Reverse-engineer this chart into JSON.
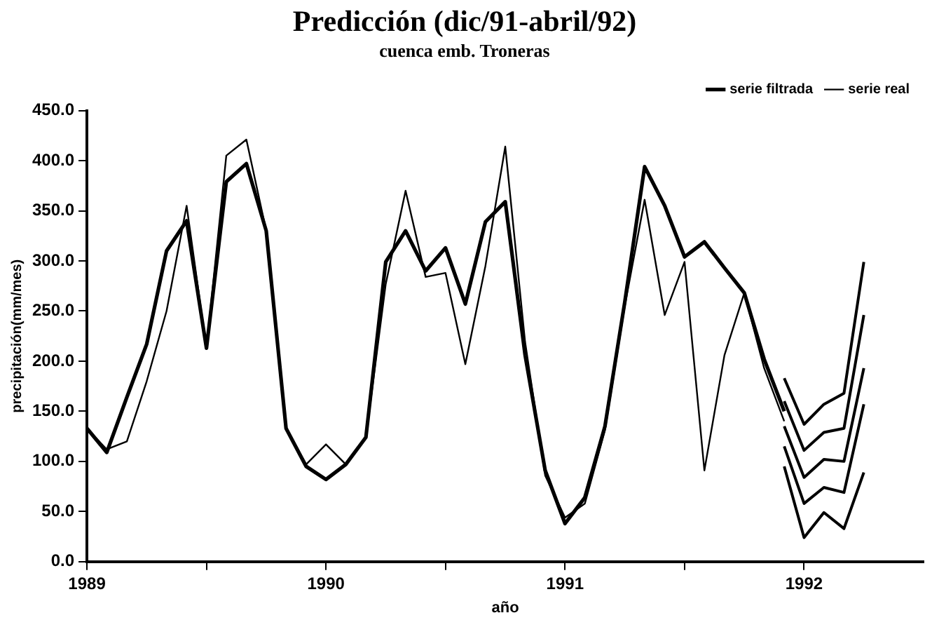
{
  "chart_data": {
    "type": "line",
    "title": "Predicción (dic/91-abril/92)",
    "subtitle": "cuenca emb. Troneras",
    "xlabel": "año",
    "ylabel": "precipitación(mm/mes)",
    "x": [
      1989,
      1989.083,
      1989.167,
      1989.25,
      1989.333,
      1989.417,
      1989.5,
      1989.583,
      1989.667,
      1989.75,
      1989.833,
      1989.917,
      1990,
      1990.083,
      1990.167,
      1990.25,
      1990.333,
      1990.417,
      1990.5,
      1990.583,
      1990.667,
      1990.75,
      1990.833,
      1990.917,
      1991,
      1991.083,
      1991.167,
      1991.25,
      1991.333,
      1991.417,
      1991.5,
      1991.583,
      1991.667,
      1991.75,
      1991.833,
      1991.917
    ],
    "series": [
      {
        "name": "serie filtrada",
        "color": "#000000",
        "values": [
          133,
          109,
          164,
          217,
          310,
          340,
          213,
          379,
          397,
          330,
          133,
          95,
          82,
          97,
          124,
          299,
          330,
          290,
          313,
          257,
          339,
          359,
          206,
          91,
          38,
          64,
          135,
          259,
          394,
          355,
          304,
          319,
          293,
          268,
          202,
          150
        ]
      },
      {
        "name": "serie real",
        "color": "#000000",
        "values": [
          133,
          112,
          120,
          180,
          250,
          355,
          213,
          405,
          421,
          330,
          133,
          97,
          117,
          97,
          124,
          277,
          370,
          284,
          288,
          197,
          295,
          414,
          219,
          86,
          44,
          58,
          131,
          255,
          361,
          246,
          299,
          91,
          206,
          268,
          193,
          140
        ]
      },
      {
        "color": "#000000",
        "x": [
          1991.917,
          1992,
          1992.083,
          1992.167,
          1992.25
        ],
        "values": [
          183,
          137,
          157,
          168,
          299
        ]
      },
      {
        "color": "#000000",
        "x": [
          1991.917,
          1992,
          1992.083,
          1992.167,
          1992.25
        ],
        "values": [
          160,
          111,
          129,
          133,
          246
        ]
      },
      {
        "color": "#000000",
        "x": [
          1991.917,
          1992,
          1992.083,
          1992.167,
          1992.25
        ],
        "values": [
          135,
          84,
          102,
          100,
          193
        ]
      },
      {
        "color": "#000000",
        "x": [
          1991.917,
          1992,
          1992.083,
          1992.167,
          1992.25
        ],
        "values": [
          115,
          58,
          74,
          69,
          157
        ]
      },
      {
        "color": "#000000",
        "x": [
          1991.917,
          1992,
          1992.083,
          1992.167,
          1992.25
        ],
        "values": [
          95,
          24,
          49,
          33,
          89
        ]
      }
    ],
    "xlim": [
      1989,
      1992.5
    ],
    "xticks": [
      1989,
      {
        "value": 1989.5,
        "label": null
      },
      1990,
      {
        "value": 1990.5,
        "label": null
      },
      1991,
      {
        "value": 1991.5,
        "label": null
      },
      1992
    ],
    "ylim": [
      0,
      450
    ],
    "yticks": [
      {
        "value": 0,
        "label": "0.0"
      },
      {
        "value": 50,
        "label": "50.0"
      },
      {
        "value": 100,
        "label": "100.0"
      },
      {
        "value": 150,
        "label": "150.0"
      },
      {
        "value": 200,
        "label": "200.0"
      },
      {
        "value": 250,
        "label": "250.0"
      },
      {
        "value": 300,
        "label": "300.0"
      },
      {
        "value": 350,
        "label": "350.0"
      },
      {
        "value": 400,
        "label": "400.0"
      },
      {
        "value": 450,
        "label": "450.0"
      }
    ],
    "grid": false,
    "legend": "top right",
    "marker": "none",
    "line_style": "solid"
  }
}
